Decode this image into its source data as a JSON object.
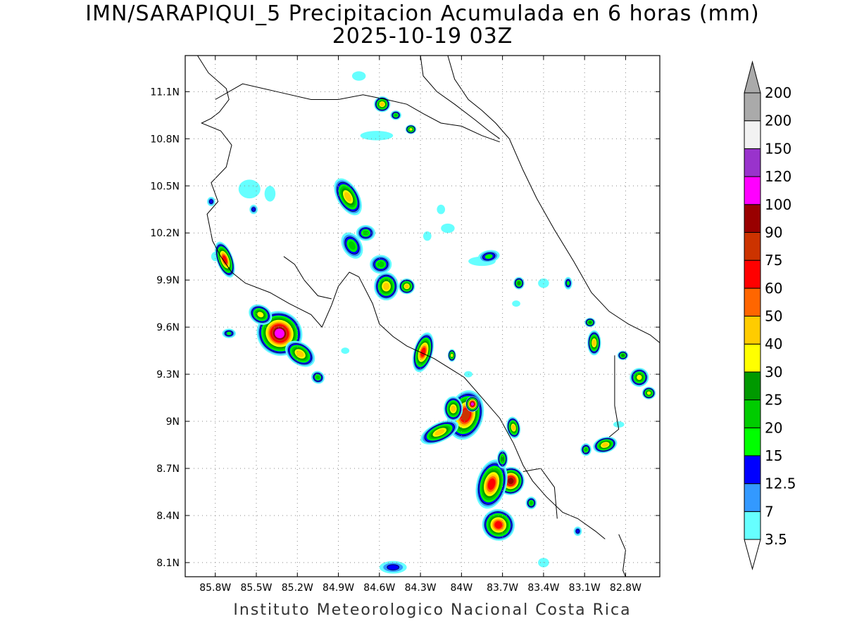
{
  "title": {
    "line1": "IMN/SARAPIQUI_5 Precipitacion Acumulada en 6 horas (mm)",
    "line2": "2025-10-19 03Z"
  },
  "footer": "Instituto Meteorologico Nacional Costa Rica",
  "map": {
    "lon_range": [
      -86.02,
      -82.55
    ],
    "lat_range": [
      8.01,
      11.33
    ],
    "lon_ticks": [
      {
        "value": -85.8,
        "label": "85.8W"
      },
      {
        "value": -85.5,
        "label": "85.5W"
      },
      {
        "value": -85.2,
        "label": "85.2W"
      },
      {
        "value": -84.9,
        "label": "84.9W"
      },
      {
        "value": -84.6,
        "label": "84.6W"
      },
      {
        "value": -84.3,
        "label": "84.3W"
      },
      {
        "value": -84.0,
        "label": "84W"
      },
      {
        "value": -83.7,
        "label": "83.7W"
      },
      {
        "value": -83.4,
        "label": "83.4W"
      },
      {
        "value": -83.1,
        "label": "83.1W"
      },
      {
        "value": -82.8,
        "label": "82.8W"
      }
    ],
    "lat_ticks": [
      {
        "value": 11.1,
        "label": "11.1N"
      },
      {
        "value": 10.8,
        "label": "10.8N"
      },
      {
        "value": 10.5,
        "label": "10.5N"
      },
      {
        "value": 10.2,
        "label": "10.2N"
      },
      {
        "value": 9.9,
        "label": "9.9N"
      },
      {
        "value": 9.6,
        "label": "9.6N"
      },
      {
        "value": 9.3,
        "label": "9.3N"
      },
      {
        "value": 9.0,
        "label": "9N"
      },
      {
        "value": 8.7,
        "label": "8.7N"
      },
      {
        "value": 8.4,
        "label": "8.4N"
      },
      {
        "value": 8.1,
        "label": "8.1N"
      }
    ],
    "grid": "dotted"
  },
  "colorbar": {
    "levels": [
      {
        "label": "3.5",
        "color": "#66ffff"
      },
      {
        "label": "7",
        "color": "#3399ff"
      },
      {
        "label": "12.5",
        "color": "#0000ff"
      },
      {
        "label": "15",
        "color": "#00ff00"
      },
      {
        "label": "20",
        "color": "#00cc00"
      },
      {
        "label": "25",
        "color": "#009900"
      },
      {
        "label": "30",
        "color": "#ffff00"
      },
      {
        "label": "40",
        "color": "#ffcc00"
      },
      {
        "label": "50",
        "color": "#ff6600"
      },
      {
        "label": "60",
        "color": "#ff0000"
      },
      {
        "label": "75",
        "color": "#cc3300"
      },
      {
        "label": "90",
        "color": "#990000"
      },
      {
        "label": "100",
        "color": "#ff00ff"
      },
      {
        "label": "120",
        "color": "#9933cc"
      },
      {
        "label": "150",
        "color": "#f2f2f2"
      },
      {
        "label": "200",
        "color": "#aaaaaa"
      }
    ],
    "under_color": "#ffffff",
    "over_color": "#aaaaaa"
  },
  "cells": [
    {
      "lon": -85.33,
      "lat": 9.56,
      "rx": 0.17,
      "ry": 0.14,
      "rot": 35,
      "peak": 100
    },
    {
      "lon": -85.18,
      "lat": 9.43,
      "rx": 0.12,
      "ry": 0.07,
      "rot": 35,
      "peak": 40
    },
    {
      "lon": -85.47,
      "lat": 9.68,
      "rx": 0.09,
      "ry": 0.06,
      "rot": 30,
      "peak": 30
    },
    {
      "lon": -85.05,
      "lat": 9.28,
      "rx": 0.05,
      "ry": 0.04,
      "rot": 30,
      "peak": 20
    },
    {
      "lon": -85.7,
      "lat": 9.56,
      "rx": 0.05,
      "ry": 0.03,
      "rot": 0,
      "peak": 15
    },
    {
      "lon": -85.73,
      "lat": 10.03,
      "rx": 0.06,
      "ry": 0.12,
      "rot": -20,
      "peak": 60
    },
    {
      "lon": -85.83,
      "lat": 10.4,
      "rx": 0.03,
      "ry": 0.03,
      "rot": 0,
      "peak": 12.5
    },
    {
      "lon": -84.83,
      "lat": 10.43,
      "rx": 0.08,
      "ry": 0.13,
      "rot": -30,
      "peak": 40
    },
    {
      "lon": -84.7,
      "lat": 10.2,
      "rx": 0.07,
      "ry": 0.05,
      "rot": 0,
      "peak": 20
    },
    {
      "lon": -84.8,
      "lat": 10.12,
      "rx": 0.07,
      "ry": 0.09,
      "rot": -30,
      "peak": 20
    },
    {
      "lon": -84.59,
      "lat": 10.0,
      "rx": 0.08,
      "ry": 0.06,
      "rot": 0,
      "peak": 20
    },
    {
      "lon": -84.55,
      "lat": 9.86,
      "rx": 0.09,
      "ry": 0.09,
      "rot": 0,
      "peak": 40
    },
    {
      "lon": -84.4,
      "lat": 9.86,
      "rx": 0.06,
      "ry": 0.05,
      "rot": 0,
      "peak": 40
    },
    {
      "lon": -84.28,
      "lat": 9.44,
      "rx": 0.07,
      "ry": 0.13,
      "rot": 15,
      "peak": 60
    },
    {
      "lon": -84.07,
      "lat": 9.42,
      "rx": 0.03,
      "ry": 0.04,
      "rot": 0,
      "peak": 30
    },
    {
      "lon": -84.58,
      "lat": 11.02,
      "rx": 0.06,
      "ry": 0.05,
      "rot": 0,
      "peak": 40
    },
    {
      "lon": -84.48,
      "lat": 10.95,
      "rx": 0.04,
      "ry": 0.03,
      "rot": 0,
      "peak": 20
    },
    {
      "lon": -84.37,
      "lat": 10.86,
      "rx": 0.04,
      "ry": 0.03,
      "rot": 0,
      "peak": 30
    },
    {
      "lon": -83.97,
      "lat": 9.04,
      "rx": 0.13,
      "ry": 0.16,
      "rot": 15,
      "peak": 75
    },
    {
      "lon": -83.92,
      "lat": 9.11,
      "rx": 0.05,
      "ry": 0.05,
      "rot": 0,
      "peak": 100
    },
    {
      "lon": -84.16,
      "lat": 8.93,
      "rx": 0.15,
      "ry": 0.06,
      "rot": -25,
      "peak": 40
    },
    {
      "lon": -84.06,
      "lat": 9.08,
      "rx": 0.07,
      "ry": 0.08,
      "rot": 0,
      "peak": 40
    },
    {
      "lon": -83.64,
      "lat": 8.62,
      "rx": 0.1,
      "ry": 0.09,
      "rot": 20,
      "peak": 90
    },
    {
      "lon": -83.78,
      "lat": 8.6,
      "rx": 0.11,
      "ry": 0.16,
      "rot": 15,
      "peak": 60
    },
    {
      "lon": -83.73,
      "lat": 8.34,
      "rx": 0.12,
      "ry": 0.1,
      "rot": 20,
      "peak": 60
    },
    {
      "lon": -83.62,
      "lat": 8.96,
      "rx": 0.05,
      "ry": 0.07,
      "rot": -10,
      "peak": 40
    },
    {
      "lon": -83.7,
      "lat": 8.76,
      "rx": 0.04,
      "ry": 0.06,
      "rot": 0,
      "peak": 25
    },
    {
      "lon": -83.49,
      "lat": 8.48,
      "rx": 0.04,
      "ry": 0.04,
      "rot": 0,
      "peak": 20
    },
    {
      "lon": -82.95,
      "lat": 8.85,
      "rx": 0.09,
      "ry": 0.05,
      "rot": -15,
      "peak": 40
    },
    {
      "lon": -83.09,
      "lat": 8.82,
      "rx": 0.04,
      "ry": 0.04,
      "rot": 0,
      "peak": 20
    },
    {
      "lon": -83.03,
      "lat": 9.5,
      "rx": 0.05,
      "ry": 0.08,
      "rot": 0,
      "peak": 40
    },
    {
      "lon": -83.06,
      "lat": 9.63,
      "rx": 0.04,
      "ry": 0.03,
      "rot": 0,
      "peak": 25
    },
    {
      "lon": -82.7,
      "lat": 9.28,
      "rx": 0.07,
      "ry": 0.06,
      "rot": -30,
      "peak": 30
    },
    {
      "lon": -82.63,
      "lat": 9.18,
      "rx": 0.05,
      "ry": 0.04,
      "rot": 0,
      "peak": 30
    },
    {
      "lon": -82.82,
      "lat": 9.42,
      "rx": 0.04,
      "ry": 0.03,
      "rot": 0,
      "peak": 25
    },
    {
      "lon": -83.58,
      "lat": 9.88,
      "rx": 0.04,
      "ry": 0.04,
      "rot": 0,
      "peak": 25
    },
    {
      "lon": -83.22,
      "lat": 9.88,
      "rx": 0.03,
      "ry": 0.04,
      "rot": 0,
      "peak": 15
    },
    {
      "lon": -83.8,
      "lat": 10.05,
      "rx": 0.08,
      "ry": 0.04,
      "rot": -10,
      "peak": 15
    },
    {
      "lon": -84.5,
      "lat": 8.07,
      "rx": 0.1,
      "ry": 0.04,
      "rot": 0,
      "peak": 12.5
    },
    {
      "lon": -83.15,
      "lat": 8.3,
      "rx": 0.03,
      "ry": 0.03,
      "rot": 0,
      "peak": 12.5
    },
    {
      "lon": -85.52,
      "lat": 10.35,
      "rx": 0.03,
      "ry": 0.03,
      "rot": 0,
      "peak": 12.5
    }
  ],
  "light_patches": [
    {
      "lon": -84.62,
      "lat": 10.82,
      "rx": 0.12,
      "ry": 0.03
    },
    {
      "lon": -84.1,
      "lat": 10.23,
      "rx": 0.05,
      "ry": 0.03
    },
    {
      "lon": -83.85,
      "lat": 10.02,
      "rx": 0.1,
      "ry": 0.03
    },
    {
      "lon": -83.4,
      "lat": 9.88,
      "rx": 0.04,
      "ry": 0.03
    },
    {
      "lon": -85.55,
      "lat": 10.48,
      "rx": 0.08,
      "ry": 0.06
    },
    {
      "lon": -85.4,
      "lat": 10.45,
      "rx": 0.04,
      "ry": 0.05
    },
    {
      "lon": -84.15,
      "lat": 10.35,
      "rx": 0.03,
      "ry": 0.03
    },
    {
      "lon": -83.6,
      "lat": 9.75,
      "rx": 0.03,
      "ry": 0.02
    },
    {
      "lon": -84.85,
      "lat": 9.45,
      "rx": 0.03,
      "ry": 0.02
    },
    {
      "lon": -82.85,
      "lat": 8.98,
      "rx": 0.04,
      "ry": 0.02
    },
    {
      "lon": -83.4,
      "lat": 8.1,
      "rx": 0.04,
      "ry": 0.03
    },
    {
      "lon": -84.75,
      "lat": 11.2,
      "rx": 0.05,
      "ry": 0.03
    },
    {
      "lon": -84.25,
      "lat": 10.18,
      "rx": 0.03,
      "ry": 0.03
    },
    {
      "lon": -83.95,
      "lat": 9.3,
      "rx": 0.03,
      "ry": 0.02
    },
    {
      "lon": -85.8,
      "lat": 10.05,
      "rx": 0.03,
      "ry": 0.03
    }
  ],
  "coastlines": [
    [
      [
        -85.93,
        11.33
      ],
      [
        -85.85,
        11.22
      ],
      [
        -85.72,
        11.12
      ],
      [
        -85.7,
        11.05
      ],
      [
        -85.77,
        10.97
      ],
      [
        -85.83,
        10.93
      ],
      [
        -85.9,
        10.9
      ],
      [
        -85.76,
        10.85
      ],
      [
        -85.68,
        10.76
      ],
      [
        -85.72,
        10.62
      ],
      [
        -85.83,
        10.52
      ],
      [
        -85.78,
        10.4
      ],
      [
        -85.86,
        10.32
      ],
      [
        -85.82,
        10.15
      ],
      [
        -85.76,
        10.05
      ],
      [
        -85.68,
        9.95
      ],
      [
        -85.58,
        9.88
      ],
      [
        -85.4,
        9.82
      ],
      [
        -85.26,
        9.75
      ],
      [
        -85.1,
        9.68
      ],
      [
        -85.02,
        9.6
      ],
      [
        -84.95,
        9.74
      ],
      [
        -84.9,
        9.86
      ],
      [
        -84.82,
        9.95
      ],
      [
        -84.75,
        9.92
      ],
      [
        -84.65,
        9.75
      ],
      [
        -84.6,
        9.62
      ],
      [
        -84.5,
        9.54
      ],
      [
        -84.4,
        9.48
      ],
      [
        -84.2,
        9.4
      ],
      [
        -83.98,
        9.28
      ],
      [
        -83.85,
        9.15
      ],
      [
        -83.72,
        9.02
      ],
      [
        -83.62,
        8.86
      ],
      [
        -83.55,
        8.72
      ],
      [
        -83.48,
        8.62
      ],
      [
        -83.38,
        8.52
      ],
      [
        -83.26,
        8.42
      ],
      [
        -83.15,
        8.38
      ],
      [
        -83.02,
        8.3
      ],
      [
        -82.95,
        8.25
      ]
    ],
    [
      [
        -84.3,
        11.33
      ],
      [
        -84.28,
        11.2
      ],
      [
        -84.18,
        11.1
      ],
      [
        -84.05,
        11.02
      ],
      [
        -83.9,
        10.92
      ],
      [
        -83.8,
        10.85
      ],
      [
        -83.72,
        10.8
      ]
    ],
    [
      [
        -84.1,
        11.33
      ],
      [
        -84.05,
        11.18
      ],
      [
        -83.95,
        11.05
      ],
      [
        -83.85,
        10.98
      ],
      [
        -83.75,
        10.9
      ],
      [
        -83.65,
        10.8
      ],
      [
        -83.55,
        10.6
      ],
      [
        -83.45,
        10.42
      ],
      [
        -83.32,
        10.22
      ],
      [
        -83.18,
        10.02
      ],
      [
        -83.05,
        9.82
      ],
      [
        -82.92,
        9.7
      ],
      [
        -82.78,
        9.62
      ],
      [
        -82.62,
        9.55
      ],
      [
        -82.55,
        9.5
      ]
    ],
    [
      [
        -85.8,
        11.05
      ],
      [
        -85.6,
        11.15
      ],
      [
        -85.35,
        11.1
      ],
      [
        -85.1,
        11.05
      ],
      [
        -84.9,
        11.05
      ],
      [
        -84.72,
        11.08
      ],
      [
        -84.55,
        11.05
      ],
      [
        -84.4,
        11.02
      ],
      [
        -84.28,
        10.96
      ],
      [
        -84.15,
        10.9
      ],
      [
        -84.0,
        10.88
      ],
      [
        -83.85,
        10.82
      ],
      [
        -83.72,
        10.78
      ]
    ],
    [
      [
        -85.3,
        10.05
      ],
      [
        -85.22,
        10.0
      ],
      [
        -85.15,
        9.9
      ],
      [
        -85.05,
        9.8
      ],
      [
        -84.95,
        9.78
      ]
    ],
    [
      [
        -82.88,
        9.42
      ],
      [
        -82.88,
        9.1
      ],
      [
        -82.85,
        8.95
      ],
      [
        -82.92,
        8.9
      ]
    ],
    [
      [
        -83.55,
        8.68
      ],
      [
        -83.42,
        8.7
      ],
      [
        -83.32,
        8.58
      ],
      [
        -83.3,
        8.38
      ]
    ],
    [
      [
        -82.85,
        8.28
      ],
      [
        -82.8,
        8.18
      ],
      [
        -82.82,
        8.05
      ],
      [
        -82.8,
        8.01
      ]
    ]
  ]
}
